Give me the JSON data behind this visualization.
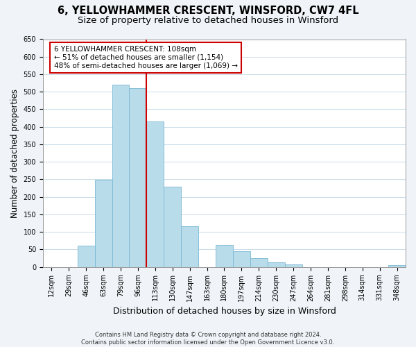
{
  "title": "6, YELLOWHAMMER CRESCENT, WINSFORD, CW7 4FL",
  "subtitle": "Size of property relative to detached houses in Winsford",
  "xlabel": "Distribution of detached houses by size in Winsford",
  "ylabel": "Number of detached properties",
  "bar_labels": [
    "12sqm",
    "29sqm",
    "46sqm",
    "63sqm",
    "79sqm",
    "96sqm",
    "113sqm",
    "130sqm",
    "147sqm",
    "163sqm",
    "180sqm",
    "197sqm",
    "214sqm",
    "230sqm",
    "247sqm",
    "264sqm",
    "281sqm",
    "298sqm",
    "314sqm",
    "331sqm",
    "348sqm"
  ],
  "bar_values": [
    0,
    0,
    60,
    248,
    521,
    510,
    415,
    229,
    117,
    0,
    63,
    45,
    24,
    13,
    8,
    0,
    0,
    0,
    0,
    0,
    5
  ],
  "bar_color": "#b8dcea",
  "bar_edge_color": "#7ab8d4",
  "vline_color": "#cc0000",
  "vline_index": 6,
  "annotation_text": "6 YELLOWHAMMER CRESCENT: 108sqm\n← 51% of detached houses are smaller (1,154)\n48% of semi-detached houses are larger (1,069) →",
  "annotation_box_color": "#ffffff",
  "annotation_box_edge": "#cc0000",
  "ylim": [
    0,
    650
  ],
  "yticks": [
    0,
    50,
    100,
    150,
    200,
    250,
    300,
    350,
    400,
    450,
    500,
    550,
    600,
    650
  ],
  "footnote": "Contains HM Land Registry data © Crown copyright and database right 2024.\nContains public sector information licensed under the Open Government Licence v3.0.",
  "outer_bg_color": "#f0f4f8",
  "plot_bg_color": "#ffffff",
  "grid_color": "#c8dce8",
  "title_fontsize": 10.5,
  "subtitle_fontsize": 9.5,
  "tick_fontsize": 7,
  "ylabel_fontsize": 8.5,
  "xlabel_fontsize": 9,
  "annotation_fontsize": 7.5,
  "footnote_fontsize": 6
}
